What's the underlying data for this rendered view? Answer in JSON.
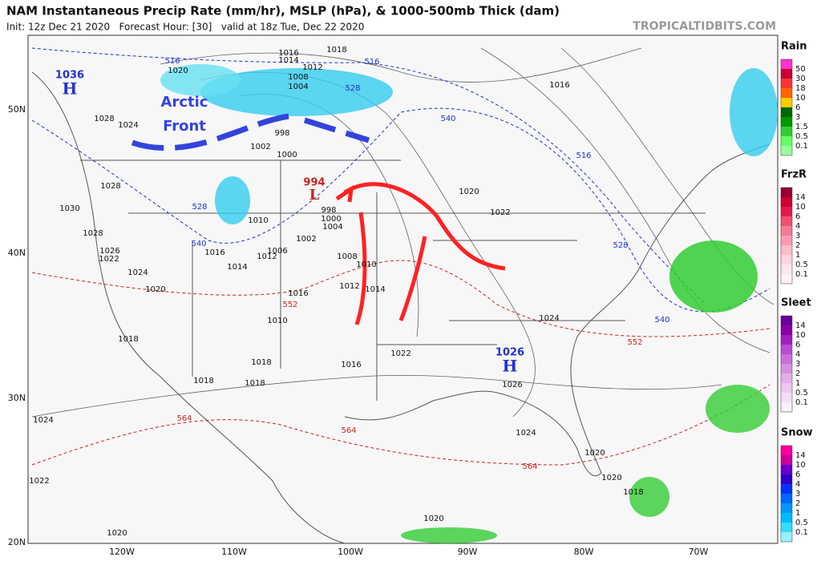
{
  "header": {
    "title": "NAM Instantaneous Precip Rate (mm/hr), MSLP (hPa), & 1000-500mb Thick (dam)",
    "subtitle": "Init: 12z Dec 21 2020   Forecast Hour: [30]   valid at 18z Tue, Dec 22 2020",
    "site": "TROPICALTIDBITS.COM"
  },
  "map": {
    "lat_labels": [
      "50N",
      "40N",
      "30N",
      "20N"
    ],
    "lon_labels": [
      "120W",
      "110W",
      "100W",
      "90W",
      "80W",
      "70W"
    ],
    "pressure_labels": [
      "1016",
      "1014",
      "1018",
      "1020",
      "1012",
      "1008",
      "1004",
      "1016",
      "1028",
      "1024",
      "998",
      "1002",
      "1000",
      "1028",
      "1030",
      "1028",
      "1026",
      "1022",
      "1024",
      "1020",
      "1016",
      "1014",
      "1012",
      "1010",
      "1006",
      "1002",
      "998",
      "1000",
      "1004",
      "1008",
      "1010",
      "1012",
      "1014",
      "1016",
      "1010",
      "1020",
      "1022",
      "1024",
      "1018",
      "1018",
      "1018",
      "1016",
      "1022",
      "1018",
      "1026",
      "1024",
      "1024",
      "1022",
      "1020",
      "1020",
      "1018",
      "1020",
      "1020"
    ],
    "thickness_cold_labels": [
      "516",
      "516",
      "528",
      "540",
      "516",
      "528",
      "540",
      "528",
      "540"
    ],
    "thickness_warm_labels": [
      "552",
      "552",
      "564",
      "564",
      "564"
    ],
    "highs": [
      {
        "value": "1036",
        "label": "H"
      },
      {
        "value": "1026",
        "label": "H"
      }
    ],
    "lows": [
      {
        "value": "994",
        "label": "L"
      }
    ],
    "annotation": [
      "Arctic",
      "Front"
    ]
  },
  "legend": [
    {
      "title": "Rain",
      "levels": [
        "50",
        "30",
        "18",
        "10",
        "6",
        "3",
        "1.5",
        "0.5",
        "0.1"
      ],
      "colors": [
        "#ff33cc",
        "#cc0033",
        "#ff3333",
        "#ff6600",
        "#ffcc00",
        "#006600",
        "#009900",
        "#33cc33",
        "#66ff66",
        "#99ff99"
      ]
    },
    {
      "title": "FrzR",
      "levels": [
        "14",
        "10",
        "6",
        "4",
        "3",
        "2",
        "1",
        "0.5",
        "0.1"
      ],
      "colors": [
        "#990033",
        "#cc0033",
        "#e6194b",
        "#f0506e",
        "#f57a93",
        "#f89bb0",
        "#fbbcca",
        "#fcd4de",
        "#fde6ec",
        "#fff2f6"
      ]
    },
    {
      "title": "Sleet",
      "levels": [
        "14",
        "10",
        "6",
        "4",
        "3",
        "2",
        "1",
        "0.5",
        "0.1"
      ],
      "colors": [
        "#660099",
        "#8800aa",
        "#a020c0",
        "#b84dd0",
        "#c870d8",
        "#d690e0",
        "#e2b0e8",
        "#ecc8f0",
        "#f4def6",
        "#faeffb"
      ]
    },
    {
      "title": "Snow",
      "levels": [
        "14",
        "10",
        "6",
        "4",
        "3",
        "2",
        "1",
        "0.5",
        "0.1"
      ],
      "colors": [
        "#ff0099",
        "#cc0099",
        "#6600cc",
        "#3300cc",
        "#0033ff",
        "#0066ff",
        "#0099ff",
        "#00bbff",
        "#33ddff",
        "#99f0ff"
      ]
    }
  ]
}
